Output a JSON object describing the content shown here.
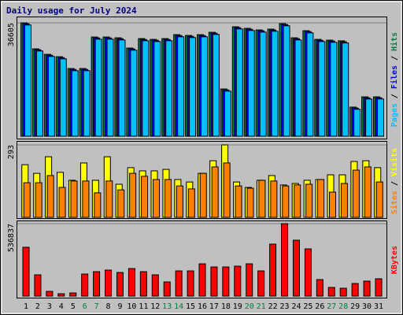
{
  "chart_data": [
    {
      "type": "bar",
      "title": "Daily usage for July 2024",
      "legend_separator": "/",
      "ylim": [
        0,
        36605
      ],
      "yticks": [
        36605
      ],
      "series": [
        {
          "name": "Hits",
          "color": "#008040",
          "values": [
            36605,
            28216,
            26437,
            25674,
            21861,
            21861,
            32029,
            32029,
            31775,
            28470,
            31521,
            31267,
            31521,
            32792,
            32538,
            32792,
            33555,
            15252,
            35334,
            34826,
            34317,
            34572,
            36351,
            31775,
            34063,
            31267,
            31013,
            30800,
            9406,
            12710,
            12710
          ]
        },
        {
          "name": "Files",
          "color": "#0000ff",
          "values": [
            36305,
            27916,
            26137,
            25374,
            21561,
            21561,
            31729,
            31729,
            31475,
            28170,
            31221,
            30967,
            31221,
            32492,
            32238,
            32492,
            33255,
            14952,
            35034,
            34526,
            34017,
            34272,
            36051,
            31475,
            33763,
            30967,
            30713,
            30500,
            9106,
            12410,
            12410
          ]
        },
        {
          "name": "Pages",
          "color": "#00c0ff",
          "values": [
            35905,
            27516,
            25737,
            24974,
            21161,
            21161,
            31329,
            31329,
            31075,
            27770,
            30821,
            30567,
            30821,
            32092,
            31838,
            32092,
            32855,
            14552,
            34634,
            34126,
            33617,
            33872,
            35651,
            31075,
            33363,
            30567,
            30313,
            30100,
            8706,
            12010,
            12010
          ]
        }
      ]
    },
    {
      "type": "bar",
      "legend_separator": "/",
      "ylim": [
        0,
        293
      ],
      "yticks": [
        293
      ],
      "series": [
        {
          "name": "Visits",
          "color": "#ffff00",
          "values": [
            213,
            178,
            245,
            182,
            150,
            220,
            150,
            245,
            134,
            201,
            188,
            188,
            194,
            153,
            143,
            178,
            229,
            293,
            143,
            121,
            150,
            169,
            131,
            137,
            150,
            153,
            172,
            172,
            226,
            229,
            201
          ]
        },
        {
          "name": "Sites",
          "color": "#ff8000",
          "values": [
            140,
            140,
            169,
            121,
            147,
            147,
            99,
            147,
            111,
            178,
            166,
            153,
            153,
            127,
            115,
            178,
            204,
            220,
            127,
            118,
            150,
            147,
            127,
            131,
            134,
            153,
            102,
            137,
            191,
            204,
            143
          ]
        }
      ]
    },
    {
      "type": "bar",
      "ylim": [
        0,
        536837
      ],
      "yticks": [
        536837
      ],
      "categories": [
        "1",
        "2",
        "3",
        "4",
        "5",
        "6",
        "7",
        "8",
        "9",
        "10",
        "11",
        "12",
        "13",
        "14",
        "15",
        "16",
        "17",
        "18",
        "19",
        "20",
        "21",
        "22",
        "23",
        "24",
        "25",
        "26",
        "27",
        "28",
        "29",
        "30",
        "31"
      ],
      "category_colors": [
        "#000000",
        "#000000",
        "#000000",
        "#000000",
        "#000000",
        "#008040",
        "#008040",
        "#000000",
        "#000000",
        "#000000",
        "#000000",
        "#000000",
        "#008040",
        "#008040",
        "#000000",
        "#000000",
        "#000000",
        "#000000",
        "#000000",
        "#008040",
        "#008040",
        "#000000",
        "#000000",
        "#000000",
        "#000000",
        "#000000",
        "#008040",
        "#008040",
        "#000000",
        "#000000",
        "#000000"
      ],
      "series": [
        {
          "name": "KBytes",
          "color": "#ff0000",
          "values": [
            361800,
            157550,
            35010,
            17500,
            23340,
            163400,
            180900,
            192600,
            175100,
            204200,
            180900,
            157550,
            105000,
            186700,
            186700,
            239200,
            215900,
            215900,
            221700,
            239200,
            186700,
            385100,
            536837,
            414300,
            350100,
            122500,
            64200,
            58350,
            93400,
            110900,
            128400
          ]
        }
      ]
    }
  ]
}
